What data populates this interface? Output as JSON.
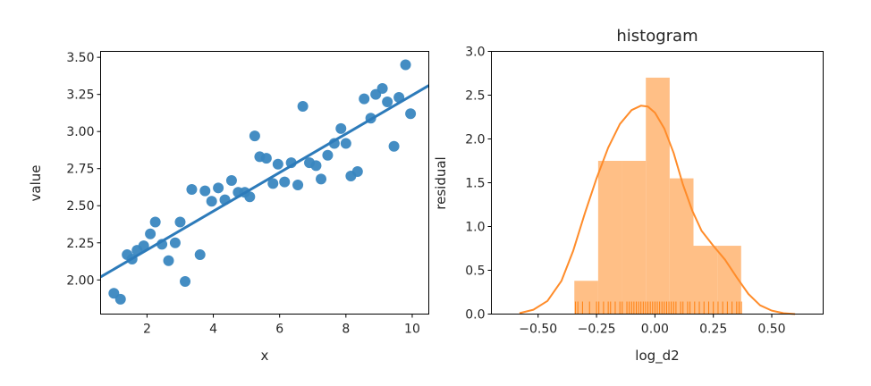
{
  "chart_data": [
    {
      "type": "scatter",
      "title": "",
      "xlabel": "x",
      "ylabel": "value",
      "xlim": [
        0.6,
        10.5
      ],
      "ylim": [
        1.77,
        3.54
      ],
      "xticks": [
        2,
        4,
        6,
        8,
        10
      ],
      "xtick_labels": [
        "2",
        "4",
        "6",
        "8",
        "10"
      ],
      "yticks": [
        2.0,
        2.25,
        2.5,
        2.75,
        3.0,
        3.25,
        3.5
      ],
      "ytick_labels": [
        "2.00",
        "2.25",
        "2.50",
        "2.75",
        "3.00",
        "3.25",
        "3.50"
      ],
      "grid": false,
      "point_color": "#3a87c0",
      "line_color": "#2d7bba",
      "regression_line": {
        "x": [
          0.6,
          10.5
        ],
        "y": [
          2.02,
          3.31
        ]
      },
      "points": [
        [
          1.0,
          1.91
        ],
        [
          1.2,
          1.87
        ],
        [
          1.4,
          2.17
        ],
        [
          1.55,
          2.14
        ],
        [
          1.7,
          2.2
        ],
        [
          1.9,
          2.23
        ],
        [
          2.1,
          2.31
        ],
        [
          2.25,
          2.39
        ],
        [
          2.45,
          2.24
        ],
        [
          2.65,
          2.13
        ],
        [
          2.85,
          2.25
        ],
        [
          3.0,
          2.39
        ],
        [
          3.15,
          1.99
        ],
        [
          3.35,
          2.61
        ],
        [
          3.6,
          2.17
        ],
        [
          3.75,
          2.6
        ],
        [
          3.95,
          2.53
        ],
        [
          4.15,
          2.62
        ],
        [
          4.35,
          2.54
        ],
        [
          4.55,
          2.67
        ],
        [
          4.75,
          2.59
        ],
        [
          4.95,
          2.59
        ],
        [
          5.1,
          2.56
        ],
        [
          5.25,
          2.97
        ],
        [
          5.4,
          2.83
        ],
        [
          5.6,
          2.82
        ],
        [
          5.8,
          2.65
        ],
        [
          5.95,
          2.78
        ],
        [
          6.15,
          2.66
        ],
        [
          6.35,
          2.79
        ],
        [
          6.55,
          2.64
        ],
        [
          6.7,
          3.17
        ],
        [
          6.9,
          2.79
        ],
        [
          7.1,
          2.77
        ],
        [
          7.25,
          2.68
        ],
        [
          7.45,
          2.84
        ],
        [
          7.65,
          2.92
        ],
        [
          7.85,
          3.02
        ],
        [
          8.0,
          2.92
        ],
        [
          8.15,
          2.7
        ],
        [
          8.35,
          2.73
        ],
        [
          8.55,
          3.22
        ],
        [
          8.75,
          3.09
        ],
        [
          8.9,
          3.25
        ],
        [
          9.1,
          3.29
        ],
        [
          9.25,
          3.2
        ],
        [
          9.45,
          2.9
        ],
        [
          9.6,
          3.23
        ],
        [
          9.8,
          3.45
        ],
        [
          9.95,
          3.12
        ]
      ]
    },
    {
      "type": "histogram",
      "title": "histogram",
      "xlabel": "log_d2",
      "ylabel": "residual",
      "xlim": [
        -0.7,
        0.72
      ],
      "ylim": [
        0,
        3.0
      ],
      "xticks": [
        -0.5,
        -0.25,
        0.0,
        0.25,
        0.5
      ],
      "xtick_labels": [
        "−0.50",
        "−0.25",
        "0.00",
        "0.25",
        "0.50"
      ],
      "yticks": [
        0.0,
        0.5,
        1.0,
        1.5,
        2.0,
        2.5,
        3.0
      ],
      "ytick_labels": [
        "0.0",
        "0.5",
        "1.0",
        "1.5",
        "2.0",
        "2.5",
        "3.0"
      ],
      "grid": false,
      "bar_color": "#ffbf86",
      "kde_color": "#ff8c2a",
      "rug_color": "#ff7f0e",
      "bins": [
        {
          "x0": -0.345,
          "x1": -0.243,
          "value": 0.38
        },
        {
          "x0": -0.243,
          "x1": -0.141,
          "value": 1.75
        },
        {
          "x0": -0.141,
          "x1": -0.039,
          "value": 1.75
        },
        {
          "x0": -0.039,
          "x1": 0.063,
          "value": 2.7
        },
        {
          "x0": 0.063,
          "x1": 0.165,
          "value": 1.55
        },
        {
          "x0": 0.165,
          "x1": 0.267,
          "value": 0.78
        },
        {
          "x0": 0.267,
          "x1": 0.369,
          "value": 0.78
        }
      ],
      "kde": {
        "x": [
          -0.58,
          -0.52,
          -0.46,
          -0.4,
          -0.35,
          -0.3,
          -0.25,
          -0.2,
          -0.15,
          -0.1,
          -0.06,
          -0.03,
          0.0,
          0.04,
          0.08,
          0.12,
          0.16,
          0.2,
          0.25,
          0.3,
          0.35,
          0.4,
          0.45,
          0.5,
          0.55,
          0.6
        ],
        "y": [
          0.01,
          0.05,
          0.15,
          0.38,
          0.72,
          1.15,
          1.55,
          1.9,
          2.17,
          2.33,
          2.38,
          2.37,
          2.3,
          2.12,
          1.84,
          1.48,
          1.18,
          0.95,
          0.78,
          0.62,
          0.42,
          0.23,
          0.1,
          0.04,
          0.01,
          0.0
        ]
      },
      "rug": [
        -0.34,
        -0.33,
        -0.31,
        -0.28,
        -0.25,
        -0.24,
        -0.22,
        -0.2,
        -0.19,
        -0.17,
        -0.15,
        -0.14,
        -0.12,
        -0.11,
        -0.1,
        -0.09,
        -0.08,
        -0.07,
        -0.06,
        -0.05,
        -0.04,
        -0.03,
        -0.02,
        -0.01,
        0.0,
        0.01,
        0.02,
        0.03,
        0.04,
        0.05,
        0.06,
        0.07,
        0.08,
        0.09,
        0.11,
        0.12,
        0.14,
        0.15,
        0.17,
        0.19,
        0.21,
        0.23,
        0.25,
        0.27,
        0.29,
        0.31,
        0.33,
        0.35,
        0.36,
        0.37
      ]
    }
  ]
}
